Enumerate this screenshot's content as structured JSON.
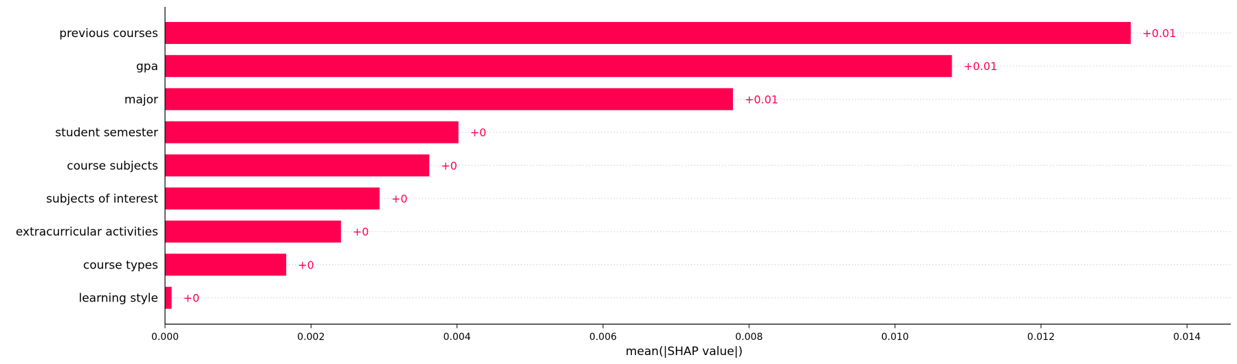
{
  "chart_data": {
    "type": "bar",
    "orientation": "horizontal",
    "categories": [
      "previous courses",
      "gpa",
      "major",
      "student semester",
      "course subjects",
      "subjects of interest",
      "extracurricular activities",
      "course types",
      "learning style"
    ],
    "values": [
      0.01323,
      0.01078,
      0.00778,
      0.00402,
      0.00362,
      0.00294,
      0.00241,
      0.00166,
      9e-05
    ],
    "data_labels": [
      "+0.01",
      "+0.01",
      "+0.01",
      "+0",
      "+0",
      "+0",
      "+0",
      "+0",
      "+0"
    ],
    "xlabel": "mean(|SHAP value|)",
    "xlim": [
      0,
      0.0146
    ],
    "xticks": [
      0,
      0.002,
      0.004,
      0.006,
      0.008,
      0.01,
      0.012,
      0.014
    ],
    "xtick_labels": [
      "0.000",
      "0.002",
      "0.004",
      "0.006",
      "0.008",
      "0.010",
      "0.012",
      "0.014"
    ],
    "grid": "dotted horizontal guides per row",
    "bar_color": "#ff0051",
    "label_color": "#ff0051"
  }
}
